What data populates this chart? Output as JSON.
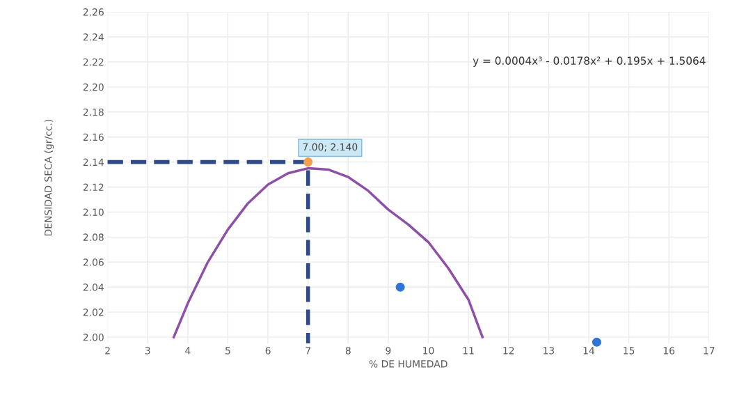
{
  "chart_data": {
    "type": "scatter",
    "xlabel": "% DE HUMEDAD",
    "ylabel": "DENSIDAD SECA (gr/cc.)",
    "xlim": [
      2,
      17
    ],
    "xticks": [
      2,
      3,
      4,
      5,
      6,
      7,
      8,
      9,
      10,
      11,
      12,
      13,
      14,
      15,
      16,
      17
    ],
    "ylim": [
      1.995,
      2.26
    ],
    "yticks": [
      {
        "value": 2.0,
        "label": "2.00"
      },
      {
        "value": 2.02,
        "label": "2.02"
      },
      {
        "value": 2.04,
        "label": "2.04"
      },
      {
        "value": 2.06,
        "label": "2.06"
      },
      {
        "value": 2.08,
        "label": "2.08"
      },
      {
        "value": 2.1,
        "label": "2.10"
      },
      {
        "value": 2.12,
        "label": "2.12"
      },
      {
        "value": 2.14,
        "label": "2.14"
      },
      {
        "value": 2.16,
        "label": "2.16"
      },
      {
        "value": 2.18,
        "label": "2.18"
      },
      {
        "value": 2.2,
        "label": "2.20"
      },
      {
        "value": 2.22,
        "label": "2.22"
      },
      {
        "value": 2.24,
        "label": "2.24"
      },
      {
        "value": 2.26,
        "label": "2.26"
      }
    ],
    "grid": true,
    "legend": false,
    "series": [
      {
        "type": "line",
        "color": "#8e4fa6",
        "line_style": "solid",
        "marker": "none",
        "x": [
          3.65,
          4,
          4.5,
          5,
          5.5,
          6,
          6.5,
          7,
          7.5,
          8,
          8.5,
          9,
          9.5,
          10,
          10.5,
          11,
          11.35
        ],
        "values": [
          2.0,
          2.027,
          2.06,
          2.086,
          2.107,
          2.122,
          2.131,
          2.135,
          2.134,
          2.128,
          2.117,
          2.102,
          2.09,
          2.076,
          2.055,
          2.03,
          2.0
        ]
      },
      {
        "type": "line",
        "color": "#2e4a8a",
        "line_style": "dashed",
        "marker": "none",
        "x": [
          2,
          7,
          7
        ],
        "values": [
          2.14,
          2.14,
          1.995
        ]
      },
      {
        "color": "#2e75d6",
        "marker": "circle",
        "x": [
          9.3,
          14.2
        ],
        "values": [
          2.04,
          1.996
        ]
      },
      {
        "color": "#f0a050",
        "marker": "circle",
        "x": [
          7
        ],
        "values": [
          2.14
        ]
      }
    ],
    "annotations": [
      "7.00; 2.140",
      "y = 0.0004x³ - 0.0178x² + 0.195x + 1.5064"
    ]
  }
}
